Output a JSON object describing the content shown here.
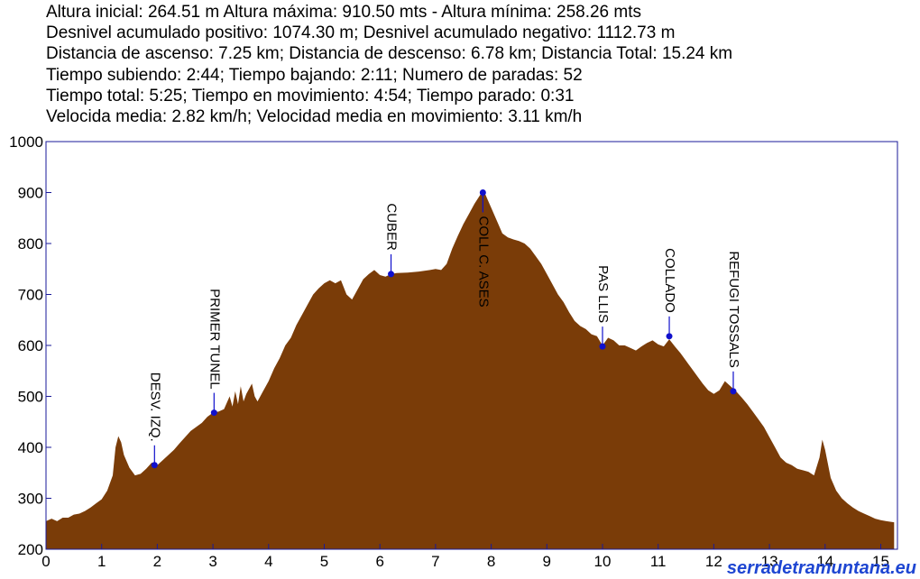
{
  "stats": [
    "Altura inicial: 264.51 m Altura máxima: 910.50 mts - Altura mínima: 258.26 mts",
    "Desnivel acumulado positivo: 1074.30 m; Desnivel acumulado negativo: 1112.73 m",
    "Distancia de ascenso: 7.25 km; Distancia de descenso: 6.78 km; Distancia Total: 15.24 km",
    "Tiempo subiendo: 2:44; Tiempo bajando: 2:11; Numero de paradas: 52",
    "Tiempo total: 5:25; Tiempo en movimiento: 4:54; Tiempo parado: 0:31",
    "Velocida media: 2.82 km/h; Velocidad media en movimiento: 3.11 km/h"
  ],
  "watermark": "serradetramuntana.eu",
  "colors": {
    "fill": "#7a3c08",
    "frame": "#1a1a9a",
    "marker": "#1010cc",
    "watermark": "#1e46d2"
  },
  "chart_data": {
    "type": "area",
    "xlim": [
      0,
      15.3
    ],
    "ylim": [
      200,
      1000
    ],
    "xticks": [
      "0",
      "1",
      "2",
      "3",
      "4",
      "5",
      "6",
      "7",
      "8",
      "9",
      "10",
      "11",
      "12",
      "13",
      "14",
      "15"
    ],
    "yticks": [
      "200",
      "300",
      "400",
      "500",
      "600",
      "700",
      "800",
      "900",
      "1000"
    ],
    "profile": [
      [
        0,
        255
      ],
      [
        0.1,
        260
      ],
      [
        0.2,
        255
      ],
      [
        0.3,
        262
      ],
      [
        0.4,
        262
      ],
      [
        0.5,
        268
      ],
      [
        0.6,
        270
      ],
      [
        0.7,
        275
      ],
      [
        0.8,
        282
      ],
      [
        0.9,
        290
      ],
      [
        1.0,
        298
      ],
      [
        1.1,
        315
      ],
      [
        1.2,
        345
      ],
      [
        1.25,
        400
      ],
      [
        1.3,
        422
      ],
      [
        1.35,
        410
      ],
      [
        1.4,
        385
      ],
      [
        1.5,
        360
      ],
      [
        1.6,
        345
      ],
      [
        1.7,
        348
      ],
      [
        1.8,
        358
      ],
      [
        1.9,
        370
      ],
      [
        2.0,
        365
      ],
      [
        2.1,
        375
      ],
      [
        2.2,
        385
      ],
      [
        2.3,
        395
      ],
      [
        2.4,
        408
      ],
      [
        2.5,
        420
      ],
      [
        2.6,
        432
      ],
      [
        2.7,
        440
      ],
      [
        2.8,
        448
      ],
      [
        2.9,
        460
      ],
      [
        3.0,
        468
      ],
      [
        3.1,
        470
      ],
      [
        3.2,
        475
      ],
      [
        3.3,
        500
      ],
      [
        3.35,
        480
      ],
      [
        3.4,
        510
      ],
      [
        3.45,
        485
      ],
      [
        3.5,
        520
      ],
      [
        3.55,
        490
      ],
      [
        3.6,
        505
      ],
      [
        3.7,
        525
      ],
      [
        3.75,
        500
      ],
      [
        3.8,
        490
      ],
      [
        3.9,
        510
      ],
      [
        4.0,
        530
      ],
      [
        4.1,
        555
      ],
      [
        4.2,
        575
      ],
      [
        4.3,
        600
      ],
      [
        4.4,
        615
      ],
      [
        4.5,
        640
      ],
      [
        4.6,
        660
      ],
      [
        4.7,
        680
      ],
      [
        4.8,
        700
      ],
      [
        4.9,
        712
      ],
      [
        5.0,
        722
      ],
      [
        5.1,
        728
      ],
      [
        5.2,
        722
      ],
      [
        5.3,
        728
      ],
      [
        5.4,
        700
      ],
      [
        5.5,
        690
      ],
      [
        5.6,
        710
      ],
      [
        5.7,
        730
      ],
      [
        5.8,
        740
      ],
      [
        5.9,
        748
      ],
      [
        6.0,
        738
      ],
      [
        6.1,
        735
      ],
      [
        6.2,
        740
      ],
      [
        6.3,
        742
      ],
      [
        6.5,
        743
      ],
      [
        6.7,
        745
      ],
      [
        6.9,
        748
      ],
      [
        7.0,
        750
      ],
      [
        7.1,
        748
      ],
      [
        7.2,
        760
      ],
      [
        7.3,
        790
      ],
      [
        7.4,
        815
      ],
      [
        7.5,
        838
      ],
      [
        7.6,
        858
      ],
      [
        7.7,
        878
      ],
      [
        7.8,
        895
      ],
      [
        7.85,
        904
      ],
      [
        7.9,
        895
      ],
      [
        8.0,
        870
      ],
      [
        8.1,
        845
      ],
      [
        8.2,
        820
      ],
      [
        8.3,
        812
      ],
      [
        8.4,
        808
      ],
      [
        8.5,
        805
      ],
      [
        8.6,
        800
      ],
      [
        8.7,
        790
      ],
      [
        8.8,
        775
      ],
      [
        8.9,
        760
      ],
      [
        9.0,
        740
      ],
      [
        9.1,
        720
      ],
      [
        9.2,
        700
      ],
      [
        9.3,
        685
      ],
      [
        9.4,
        665
      ],
      [
        9.5,
        648
      ],
      [
        9.6,
        638
      ],
      [
        9.7,
        632
      ],
      [
        9.8,
        622
      ],
      [
        9.9,
        618
      ],
      [
        10.0,
        600
      ],
      [
        10.1,
        615
      ],
      [
        10.2,
        610
      ],
      [
        10.3,
        600
      ],
      [
        10.4,
        600
      ],
      [
        10.5,
        595
      ],
      [
        10.6,
        590
      ],
      [
        10.7,
        598
      ],
      [
        10.8,
        605
      ],
      [
        10.9,
        610
      ],
      [
        11.0,
        602
      ],
      [
        11.1,
        598
      ],
      [
        11.2,
        612
      ],
      [
        11.3,
        598
      ],
      [
        11.4,
        585
      ],
      [
        11.5,
        570
      ],
      [
        11.6,
        555
      ],
      [
        11.7,
        540
      ],
      [
        11.8,
        525
      ],
      [
        11.9,
        512
      ],
      [
        12.0,
        505
      ],
      [
        12.1,
        512
      ],
      [
        12.2,
        530
      ],
      [
        12.3,
        520
      ],
      [
        12.4,
        510
      ],
      [
        12.5,
        498
      ],
      [
        12.6,
        485
      ],
      [
        12.7,
        470
      ],
      [
        12.8,
        455
      ],
      [
        12.9,
        440
      ],
      [
        13.0,
        420
      ],
      [
        13.1,
        400
      ],
      [
        13.2,
        380
      ],
      [
        13.3,
        370
      ],
      [
        13.4,
        365
      ],
      [
        13.5,
        358
      ],
      [
        13.6,
        355
      ],
      [
        13.7,
        352
      ],
      [
        13.8,
        345
      ],
      [
        13.9,
        380
      ],
      [
        13.95,
        415
      ],
      [
        14.0,
        395
      ],
      [
        14.1,
        340
      ],
      [
        14.2,
        315
      ],
      [
        14.3,
        300
      ],
      [
        14.4,
        290
      ],
      [
        14.5,
        282
      ],
      [
        14.6,
        275
      ],
      [
        14.7,
        270
      ],
      [
        14.8,
        265
      ],
      [
        14.9,
        260
      ],
      [
        15.0,
        257
      ],
      [
        15.1,
        255
      ],
      [
        15.24,
        253
      ]
    ],
    "waypoints": [
      {
        "name": "DESV. IZQ.",
        "x": 1.95,
        "y": 365
      },
      {
        "name": "PRIMER TUNEL",
        "x": 3.02,
        "y": 468
      },
      {
        "name": "CUBER",
        "x": 6.2,
        "y": 740
      },
      {
        "name": "COLL C. ASES",
        "x": 7.85,
        "y": 900
      },
      {
        "name": "PAS LLIS",
        "x": 10.0,
        "y": 598
      },
      {
        "name": "COLLADO",
        "x": 11.2,
        "y": 618
      },
      {
        "name": "REFUGI TOSSALS",
        "x": 12.35,
        "y": 510
      }
    ]
  }
}
